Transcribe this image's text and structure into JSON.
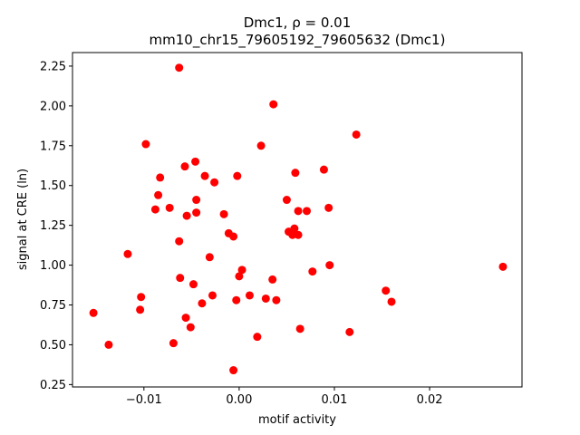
{
  "chart_data": {
    "type": "scatter",
    "title_line1": "Dmc1, ρ = 0.01",
    "title_line2": "mm10_chr15_79605192_79605632 (Dmc1)",
    "xlabel": "motif activity",
    "ylabel": "signal at CRE (ln)",
    "xlim": [
      -0.0175,
      0.0297
    ],
    "ylim": [
      0.235,
      2.335
    ],
    "x_ticks": [
      {
        "value": -0.01,
        "label": "−0.01"
      },
      {
        "value": 0.0,
        "label": "0.00"
      },
      {
        "value": 0.01,
        "label": "0.01"
      },
      {
        "value": 0.02,
        "label": "0.02"
      }
    ],
    "y_ticks": [
      {
        "value": 0.25,
        "label": "0.25"
      },
      {
        "value": 0.5,
        "label": "0.50"
      },
      {
        "value": 0.75,
        "label": "0.75"
      },
      {
        "value": 1.0,
        "label": "1.00"
      },
      {
        "value": 1.25,
        "label": "1.25"
      },
      {
        "value": 1.5,
        "label": "1.50"
      },
      {
        "value": 1.75,
        "label": "1.75"
      },
      {
        "value": 2.0,
        "label": "2.00"
      },
      {
        "value": 2.25,
        "label": "2.25"
      }
    ],
    "marker_color": "#ff0000",
    "grid": false,
    "points": [
      {
        "x": -0.0063,
        "y": 2.24
      },
      {
        "x": 0.0036,
        "y": 2.01
      },
      {
        "x": 0.0123,
        "y": 1.82
      },
      {
        "x": -0.0098,
        "y": 1.76
      },
      {
        "x": 0.0023,
        "y": 1.75
      },
      {
        "x": -0.0046,
        "y": 1.65
      },
      {
        "x": -0.0057,
        "y": 1.62
      },
      {
        "x": 0.0089,
        "y": 1.6
      },
      {
        "x": 0.0059,
        "y": 1.58
      },
      {
        "x": -0.0036,
        "y": 1.56
      },
      {
        "x": -0.0002,
        "y": 1.56
      },
      {
        "x": -0.0083,
        "y": 1.55
      },
      {
        "x": -0.0026,
        "y": 1.52
      },
      {
        "x": -0.0085,
        "y": 1.44
      },
      {
        "x": 0.005,
        "y": 1.41
      },
      {
        "x": -0.0045,
        "y": 1.41
      },
      {
        "x": -0.0088,
        "y": 1.35
      },
      {
        "x": -0.0073,
        "y": 1.36
      },
      {
        "x": 0.0094,
        "y": 1.36
      },
      {
        "x": 0.0071,
        "y": 1.34
      },
      {
        "x": 0.0062,
        "y": 1.34
      },
      {
        "x": -0.0045,
        "y": 1.33
      },
      {
        "x": -0.0016,
        "y": 1.32
      },
      {
        "x": -0.0055,
        "y": 1.31
      },
      {
        "x": 0.0058,
        "y": 1.23
      },
      {
        "x": 0.0052,
        "y": 1.21
      },
      {
        "x": 0.0056,
        "y": 1.19
      },
      {
        "x": 0.0062,
        "y": 1.19
      },
      {
        "x": -0.0011,
        "y": 1.2
      },
      {
        "x": -0.0006,
        "y": 1.18
      },
      {
        "x": -0.0063,
        "y": 1.15
      },
      {
        "x": -0.0117,
        "y": 1.07
      },
      {
        "x": -0.0031,
        "y": 1.05
      },
      {
        "x": 0.0277,
        "y": 0.99
      },
      {
        "x": 0.0095,
        "y": 1.0
      },
      {
        "x": 0.0003,
        "y": 0.97
      },
      {
        "x": 0.0077,
        "y": 0.96
      },
      {
        "x": 0.0,
        "y": 0.93
      },
      {
        "x": -0.0062,
        "y": 0.92
      },
      {
        "x": 0.0035,
        "y": 0.91
      },
      {
        "x": -0.0048,
        "y": 0.88
      },
      {
        "x": 0.0154,
        "y": 0.84
      },
      {
        "x": 0.0011,
        "y": 0.81
      },
      {
        "x": -0.0028,
        "y": 0.81
      },
      {
        "x": -0.0103,
        "y": 0.8
      },
      {
        "x": 0.0028,
        "y": 0.79
      },
      {
        "x": 0.0039,
        "y": 0.78
      },
      {
        "x": -0.0003,
        "y": 0.78
      },
      {
        "x": 0.016,
        "y": 0.77
      },
      {
        "x": -0.0039,
        "y": 0.76
      },
      {
        "x": -0.0104,
        "y": 0.72
      },
      {
        "x": -0.0153,
        "y": 0.7
      },
      {
        "x": -0.0056,
        "y": 0.67
      },
      {
        "x": -0.0051,
        "y": 0.61
      },
      {
        "x": 0.0064,
        "y": 0.6
      },
      {
        "x": 0.0116,
        "y": 0.58
      },
      {
        "x": 0.0019,
        "y": 0.55
      },
      {
        "x": -0.0069,
        "y": 0.51
      },
      {
        "x": -0.0137,
        "y": 0.5
      },
      {
        "x": -0.0006,
        "y": 0.34
      }
    ]
  }
}
